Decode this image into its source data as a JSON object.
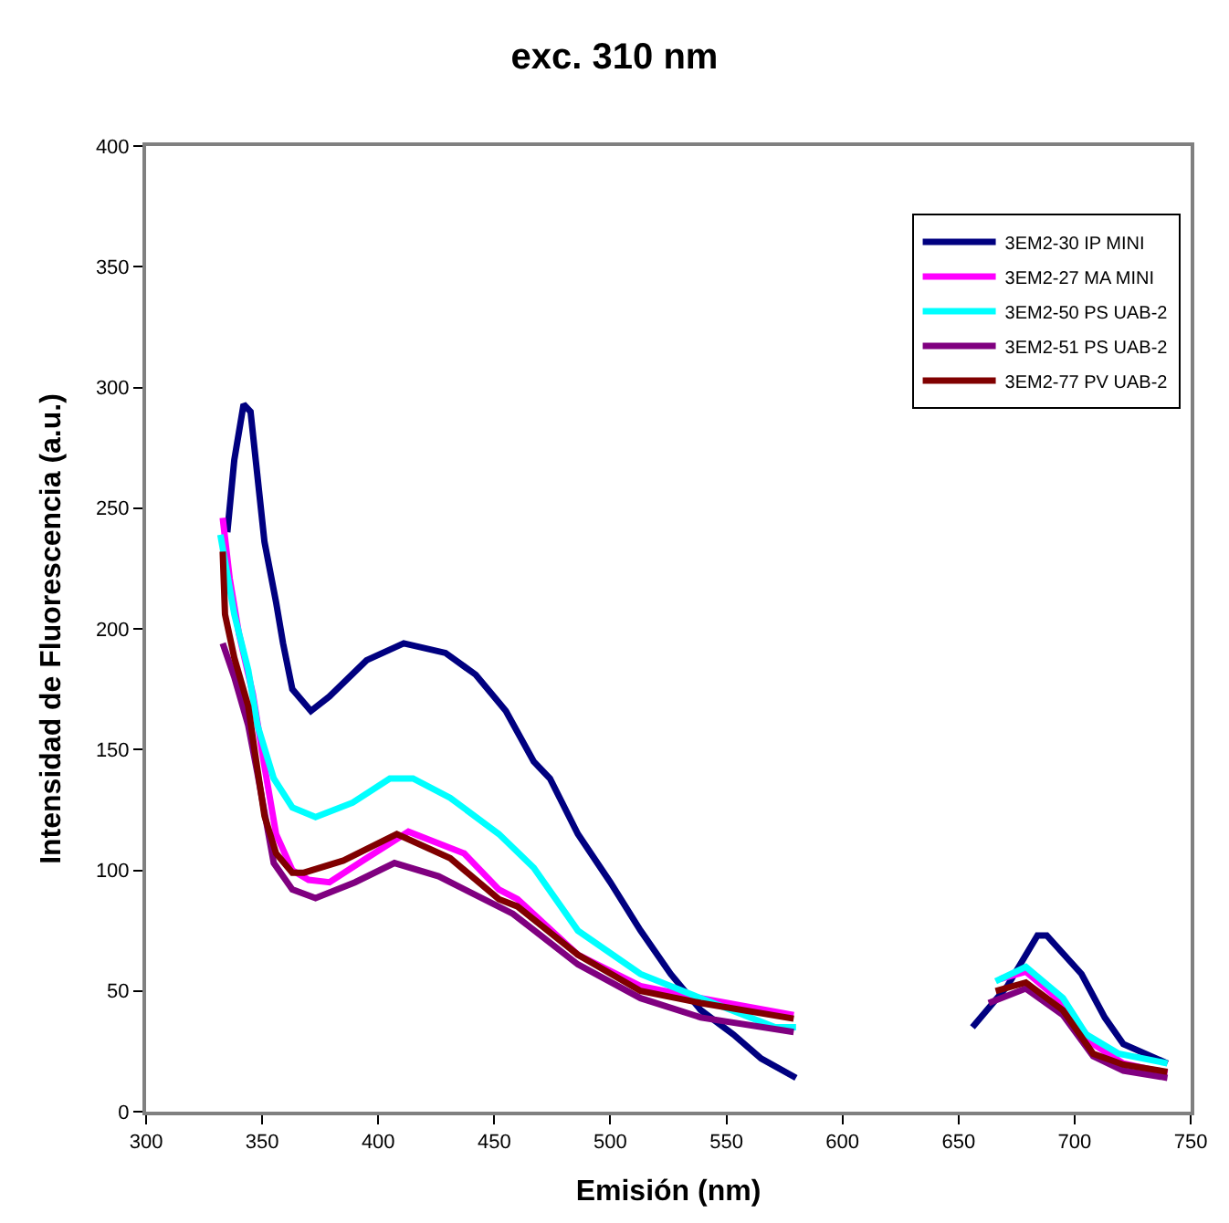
{
  "chart_data": {
    "type": "line",
    "title": "exc. 310 nm",
    "xlabel": "Emisión (nm)",
    "ylabel": "Intensidad de Fluorescencia (a.u.)",
    "xlim": [
      300,
      750
    ],
    "xticks": [
      300,
      350,
      400,
      450,
      500,
      550,
      600,
      650,
      700,
      750
    ],
    "ylim": [
      0,
      400
    ],
    "yticks": [
      0,
      50,
      100,
      150,
      200,
      250,
      300,
      350,
      400
    ],
    "legend": "top right",
    "marker": "none",
    "line_style": "solid",
    "series": [
      {
        "name": "3EM2-30 IP MINI",
        "color": "#000080",
        "x": [
          335,
          338,
          342,
          345,
          351,
          356,
          359,
          363,
          371,
          379,
          395,
          411,
          429,
          442,
          455,
          467,
          474,
          486,
          500,
          513,
          526,
          539,
          553,
          565,
          580,
          620,
          656,
          671,
          684,
          688,
          703,
          713,
          721,
          740
        ],
        "values": [
          240,
          270,
          293,
          290,
          236,
          211,
          194,
          175,
          166,
          172,
          187,
          194,
          190,
          181,
          166,
          145,
          138,
          115,
          95,
          75,
          57,
          42,
          32,
          22,
          14,
          null,
          35,
          52,
          73,
          73,
          57,
          39,
          28,
          20
        ]
      },
      {
        "name": "3EM2-27 MA MINI",
        "color": "#ff00ff",
        "x": [
          333,
          336,
          340,
          346,
          351,
          356,
          363,
          370,
          379,
          395,
          413,
          437,
          452,
          460,
          486,
          513,
          539,
          579,
          620,
          668,
          679,
          695,
          708,
          721,
          740
        ],
        "values": [
          246,
          221,
          198,
          173,
          143,
          115,
          100,
          96,
          95,
          105,
          116,
          107,
          92,
          88,
          65,
          52,
          47,
          40,
          null,
          55,
          58,
          45,
          28,
          20,
          16
        ]
      },
      {
        "name": "3EM2-50 PS UAB-2",
        "color": "#00ffff",
        "x": [
          332,
          338,
          344,
          348,
          355,
          363,
          373,
          389,
          405,
          415,
          431,
          452,
          467,
          486,
          513,
          539,
          571,
          580,
          620,
          666,
          679,
          695,
          705,
          719,
          740
        ],
        "values": [
          239,
          206,
          183,
          160,
          138,
          126,
          122,
          128,
          138,
          138,
          130,
          115,
          101,
          75,
          57,
          47,
          35,
          35,
          null,
          54,
          60,
          47,
          32,
          24,
          20
        ]
      },
      {
        "name": "3EM2-51 PS UAB-2",
        "color": "#800080",
        "x": [
          333,
          338,
          344,
          348,
          355,
          363,
          373,
          390,
          407,
          426,
          458,
          486,
          513,
          539,
          579,
          620,
          663,
          679,
          695,
          708,
          721,
          740
        ],
        "values": [
          194,
          180,
          160,
          140,
          103,
          92,
          88.5,
          95,
          103,
          97.5,
          82,
          61,
          47,
          39,
          33,
          null,
          45,
          51,
          40,
          23,
          17,
          14
        ]
      },
      {
        "name": "3EM2-77 PV UAB-2",
        "color": "#800000",
        "x": [
          333,
          334,
          338,
          344,
          347,
          351,
          356,
          363,
          368,
          385,
          408,
          431,
          452,
          460,
          486,
          513,
          539,
          579,
          620,
          666,
          679,
          695,
          708,
          721,
          740
        ],
        "values": [
          232,
          206,
          188,
          168,
          148,
          122.5,
          107,
          99,
          99,
          104,
          115,
          105,
          88,
          85,
          65,
          50,
          45,
          38.5,
          null,
          50,
          53.5,
          42,
          24,
          19.5,
          16.5
        ]
      }
    ]
  }
}
